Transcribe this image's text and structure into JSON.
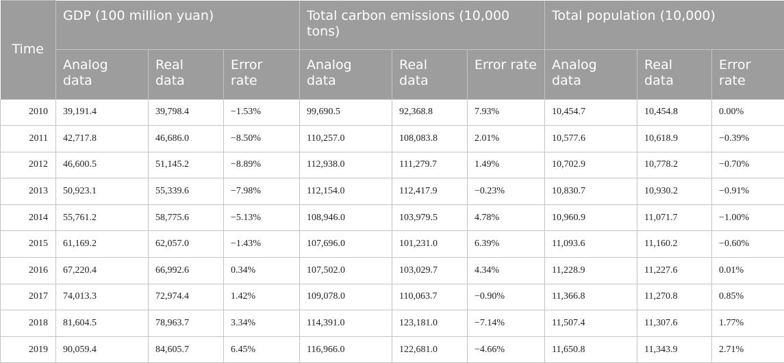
{
  "header": {
    "time_label": "Time",
    "groups": [
      "GDP (100 million yuan)",
      "Total carbon emissions (10,000 tons)",
      "Total population (10,000)"
    ],
    "subcolumns": [
      "Analog data",
      "Real data",
      "Error rate",
      "Analog data",
      "Real data",
      "Error rate",
      "Analog data",
      "Real data",
      "Error rate"
    ]
  },
  "rows": [
    [
      "2010",
      "39,191.4",
      "39,798.4",
      "−1.53%",
      "99,690.5",
      "92,368.8",
      "7.93%",
      "10,454.7",
      "10,454.8",
      "0.00%"
    ],
    [
      "2011",
      "42,717.8",
      "46,686.0",
      "−8.50%",
      "110,257.0",
      "108,083.8",
      "2.01%",
      "10,577.6",
      "10,618.9",
      "−0.39%"
    ],
    [
      "2012",
      "46,600.5",
      "51,145.2",
      "−8.89%",
      "112,938.0",
      "111,279.7",
      "1.49%",
      "10,702.9",
      "10,778.2",
      "−0.70%"
    ],
    [
      "2013",
      "50,923.1",
      "55,339.6",
      "−7.98%",
      "112,154.0",
      "112,417.9",
      "−0.23%",
      "10,830.7",
      "10,930.2",
      "−0.91%"
    ],
    [
      "2014",
      "55,761.2",
      "58,775.6",
      "−5.13%",
      "108,946.0",
      "103,979.5",
      "4.78%",
      "10,960.9",
      "11,071.7",
      "−1.00%"
    ],
    [
      "2015",
      "61,169.2",
      "62,057.0",
      "−1.43%",
      "107,696.0",
      "101,231.0",
      "6.39%",
      "11,093.6",
      "11,160.2",
      "−0.60%"
    ],
    [
      "2016",
      "67,220.4",
      "66,992.6",
      "0.34%",
      "107,502.0",
      "103,029.7",
      "4.34%",
      "11,228.9",
      "11,227.6",
      "0.01%"
    ],
    [
      "2017",
      "74,013.3",
      "72,974.4",
      "1.42%",
      "109,078.0",
      "110,063.7",
      "−0.90%",
      "11,366.8",
      "11,270.8",
      "0.85%"
    ],
    [
      "2018",
      "81,604.5",
      "78,963.7",
      "3.34%",
      "114,391.0",
      "123,181.0",
      "−7.14%",
      "11,507.4",
      "11,307.6",
      "1.77%"
    ],
    [
      "2019",
      "90,059.4",
      "84,605.7",
      "6.45%",
      "116,966.0",
      "122,681.0",
      "−4.66%",
      "11,650.8",
      "11,343.9",
      "2.71%"
    ]
  ]
}
